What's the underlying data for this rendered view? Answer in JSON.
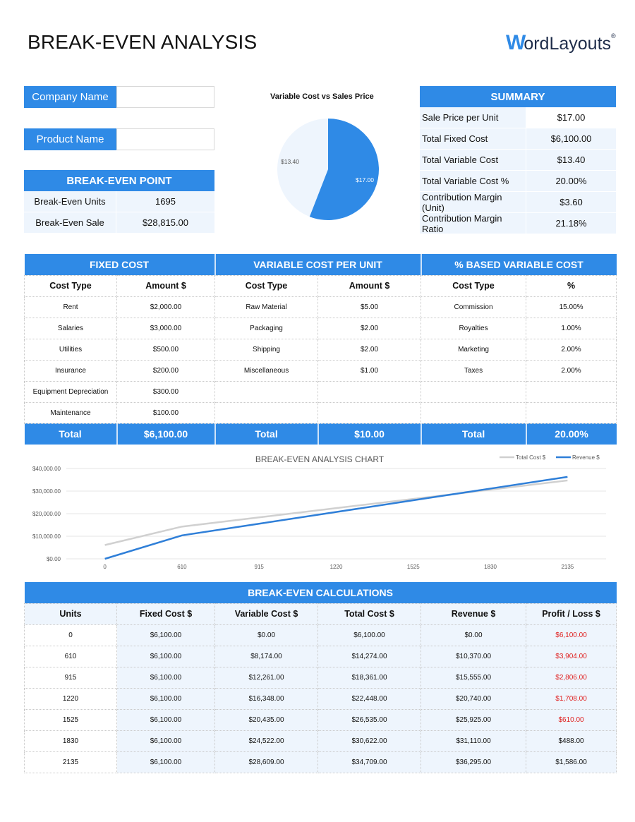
{
  "header": {
    "title": "BREAK-EVEN ANALYSIS",
    "logo_w": "W",
    "logo_rest": "ordLayouts",
    "logo_mark": "®"
  },
  "inputs": {
    "company": {
      "label": "Company Name",
      "value": ""
    },
    "product": {
      "label": "Product Name",
      "value": ""
    }
  },
  "break_even_point": {
    "title": "BREAK-EVEN POINT",
    "rows": [
      {
        "label": "Break-Even Units",
        "value": "1695"
      },
      {
        "label": "Break-Even Sale",
        "value": "$28,815.00"
      }
    ]
  },
  "summary": {
    "title": "SUMMARY",
    "rows": [
      {
        "label": "Sale Price per Unit",
        "value": "$17.00"
      },
      {
        "label": "Total Fixed Cost",
        "value": "$6,100.00"
      },
      {
        "label": "Total Variable Cost",
        "value": "$13.40"
      },
      {
        "label": "Total Variable Cost %",
        "value": "20.00%"
      },
      {
        "label": "Contribution Margin (Unit)",
        "value": "$3.60"
      },
      {
        "label": "Contribution Margin Ratio",
        "value": "21.18%"
      }
    ]
  },
  "costs": {
    "sections": [
      "FIXED COST",
      "VARIABLE COST PER UNIT",
      "% BASED VARIABLE COST"
    ],
    "columns": [
      "Cost Type",
      "Amount $",
      "Cost Type",
      "Amount $",
      "Cost Type",
      "%"
    ],
    "rows": [
      [
        "Rent",
        "$2,000.00",
        "Raw Material",
        "$5.00",
        "Commission",
        "15.00%"
      ],
      [
        "Salaries",
        "$3,000.00",
        "Packaging",
        "$2.00",
        "Royalties",
        "1.00%"
      ],
      [
        "Utilities",
        "$500.00",
        "Shipping",
        "$2.00",
        "Marketing",
        "2.00%"
      ],
      [
        "Insurance",
        "$200.00",
        "Miscellaneous",
        "$1.00",
        "Taxes",
        "2.00%"
      ],
      [
        "Equipment Depreciation",
        "$300.00",
        "",
        "",
        "",
        ""
      ],
      [
        "Maintenance",
        "$100.00",
        "",
        "",
        "",
        ""
      ]
    ],
    "totals": [
      "Total",
      "$6,100.00",
      "Total",
      "$10.00",
      "Total",
      "20.00%"
    ]
  },
  "calculations": {
    "title": "BREAK-EVEN CALCULATIONS",
    "columns": [
      "Units",
      "Fixed Cost $",
      "Variable Cost $",
      "Total Cost $",
      "Revenue $",
      "Profit / Loss $"
    ],
    "rows": [
      [
        "0",
        "$6,100.00",
        "$0.00",
        "$6,100.00",
        "$0.00",
        "$6,100.00"
      ],
      [
        "610",
        "$6,100.00",
        "$8,174.00",
        "$14,274.00",
        "$10,370.00",
        "$3,904.00"
      ],
      [
        "915",
        "$6,100.00",
        "$12,261.00",
        "$18,361.00",
        "$15,555.00",
        "$2,806.00"
      ],
      [
        "1220",
        "$6,100.00",
        "$16,348.00",
        "$22,448.00",
        "$20,740.00",
        "$1,708.00"
      ],
      [
        "1525",
        "$6,100.00",
        "$20,435.00",
        "$26,535.00",
        "$25,925.00",
        "$610.00"
      ],
      [
        "1830",
        "$6,100.00",
        "$24,522.00",
        "$30,622.00",
        "$31,110.00",
        "$488.00"
      ],
      [
        "2135",
        "$6,100.00",
        "$28,609.00",
        "$34,709.00",
        "$36,295.00",
        "$1,586.00"
      ]
    ],
    "negative_rows": [
      0,
      1,
      2,
      3,
      4
    ]
  },
  "colors": {
    "accent": "#2f8ae6",
    "light": "#eef5fd",
    "loss": "#e02020",
    "total_cost_line": "#d0d0d0"
  },
  "chart_data": [
    {
      "type": "pie",
      "title": "Variable Cost vs Sales Price",
      "categories": [
        "Total Variable Cost",
        "Sale Price"
      ],
      "values": [
        13.4,
        17.0
      ],
      "labels": [
        "$13.40",
        "$17.00"
      ],
      "colors": [
        "#eef5fd",
        "#2f8ae6"
      ]
    },
    {
      "type": "line",
      "title": "BREAK-EVEN ANALYSIS CHART",
      "categories": [
        "0",
        "610",
        "915",
        "1220",
        "1525",
        "1830",
        "2135"
      ],
      "series": [
        {
          "name": "Total Cost $",
          "values": [
            6100,
            14274,
            18361,
            22448,
            26535,
            30622,
            34709
          ],
          "color": "#d0d0d0"
        },
        {
          "name": "Revenue $",
          "values": [
            0,
            10370,
            15555,
            20740,
            25925,
            31110,
            36295
          ],
          "color": "#2f7fd8"
        }
      ],
      "yticks": [
        "$0.00",
        "$10,000.00",
        "$20,000.00",
        "$30,000.00",
        "$40,000.00"
      ],
      "ylim": [
        0,
        40000
      ],
      "grid": true,
      "legend_position": "top-right",
      "xlabel": "",
      "ylabel": ""
    }
  ]
}
